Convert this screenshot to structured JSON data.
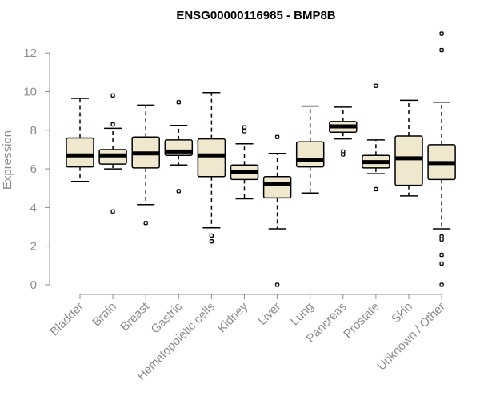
{
  "chart_data": {
    "type": "box",
    "title": "ENSG00000116985 - BMP8B",
    "xlabel": "",
    "ylabel": "Expression",
    "ylim": [
      0,
      13
    ],
    "yticks": [
      0,
      2,
      4,
      6,
      8,
      10,
      12
    ],
    "colors": {
      "box_fill": "#efe8cf",
      "box_stroke": "#000000",
      "axis": "#8c8c8c"
    },
    "categories": [
      "Bladder",
      "Brain",
      "Breast",
      "Gastric",
      "Hematopoietic cells",
      "Kidney",
      "Liver",
      "Lung",
      "Pancreas",
      "Prostate",
      "Skin",
      "Unknown / Other"
    ],
    "boxes": [
      {
        "name": "Bladder",
        "lower_whisker": 5.35,
        "q1": 6.1,
        "median": 6.7,
        "q3": 7.6,
        "upper_whisker": 9.65,
        "outliers": []
      },
      {
        "name": "Brain",
        "lower_whisker": 6.0,
        "q1": 6.25,
        "median": 6.7,
        "q3": 7.0,
        "upper_whisker": 8.1,
        "outliers": [
          9.8,
          8.3,
          3.8
        ]
      },
      {
        "name": "Breast",
        "lower_whisker": 4.15,
        "q1": 6.05,
        "median": 6.8,
        "q3": 7.65,
        "upper_whisker": 9.3,
        "outliers": [
          3.2
        ]
      },
      {
        "name": "Gastric",
        "lower_whisker": 6.2,
        "q1": 6.7,
        "median": 6.9,
        "q3": 7.5,
        "upper_whisker": 8.25,
        "outliers": [
          9.45,
          4.85
        ]
      },
      {
        "name": "Hematopoietic cells",
        "lower_whisker": 2.95,
        "q1": 5.6,
        "median": 6.7,
        "q3": 7.55,
        "upper_whisker": 9.95,
        "outliers": [
          2.55,
          2.25
        ]
      },
      {
        "name": "Kidney",
        "lower_whisker": 4.45,
        "q1": 5.45,
        "median": 5.85,
        "q3": 6.2,
        "upper_whisker": 7.3,
        "outliers": [
          8.15,
          7.95
        ]
      },
      {
        "name": "Liver",
        "lower_whisker": 2.9,
        "q1": 4.5,
        "median": 5.2,
        "q3": 5.6,
        "upper_whisker": 6.8,
        "outliers": [
          7.65,
          0.0
        ]
      },
      {
        "name": "Lung",
        "lower_whisker": 4.75,
        "q1": 6.1,
        "median": 6.45,
        "q3": 7.4,
        "upper_whisker": 9.25,
        "outliers": []
      },
      {
        "name": "Pancreas",
        "lower_whisker": 7.55,
        "q1": 7.9,
        "median": 8.2,
        "q3": 8.45,
        "upper_whisker": 9.2,
        "outliers": [
          6.9,
          6.75
        ]
      },
      {
        "name": "Prostate",
        "lower_whisker": 5.75,
        "q1": 6.05,
        "median": 6.35,
        "q3": 6.7,
        "upper_whisker": 7.5,
        "outliers": [
          10.3,
          4.95
        ]
      },
      {
        "name": "Skin",
        "lower_whisker": 4.6,
        "q1": 5.15,
        "median": 6.55,
        "q3": 7.7,
        "upper_whisker": 9.55,
        "outliers": []
      },
      {
        "name": "Unknown / Other",
        "lower_whisker": 2.9,
        "q1": 5.45,
        "median": 6.3,
        "q3": 7.25,
        "upper_whisker": 9.45,
        "outliers": [
          13.0,
          12.15,
          2.5,
          2.35,
          1.55,
          1.1,
          0.0
        ]
      }
    ]
  }
}
